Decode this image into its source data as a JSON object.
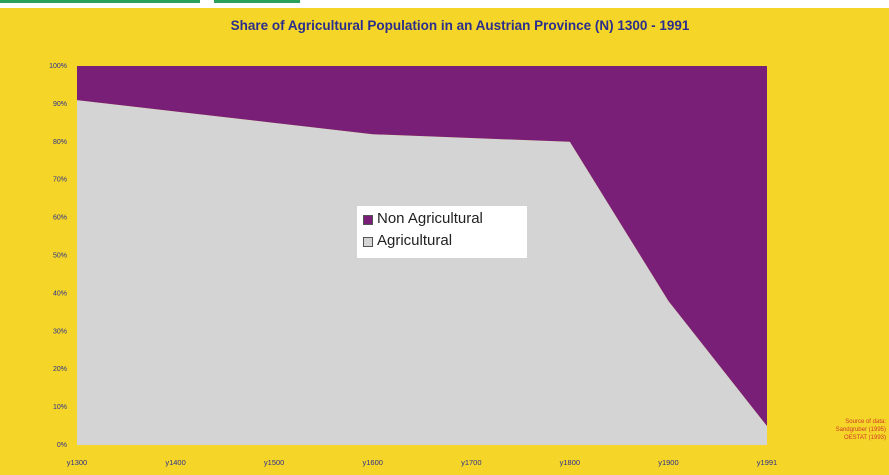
{
  "chart_data": {
    "type": "area",
    "stacked": true,
    "title": "Share of Agricultural Population in an Austrian Province (N) 1300 - 1991",
    "categories": [
      "y1300",
      "y1400",
      "y1500",
      "y1600",
      "y1700",
      "y1800",
      "y1900",
      "y1991"
    ],
    "series": [
      {
        "name": "Agricultural",
        "values": [
          91,
          88,
          85,
          82,
          81,
          80,
          38,
          5
        ],
        "color": "#d4d4d4"
      },
      {
        "name": "Non Agricultural",
        "values": [
          9,
          12,
          15,
          18,
          19,
          20,
          62,
          95
        ],
        "color": "#7a1f78"
      }
    ],
    "ylim": [
      0,
      100
    ],
    "yticks": [
      "0%",
      "10%",
      "20%",
      "30%",
      "40%",
      "50%",
      "60%",
      "70%",
      "80%",
      "90%",
      "100%"
    ],
    "xlabel": "",
    "ylabel": "",
    "grid": false,
    "legend": "center"
  },
  "legend_entries": [
    {
      "label": "Non Agricultural",
      "color": "#7a1f78"
    },
    {
      "label": "Agricultural",
      "color": "#d4d4d4"
    }
  ],
  "source_note": [
    "Source of data:",
    "Sandgruber (1995)",
    "OESTAT (1993)"
  ],
  "colors": {
    "background": "#f5d628",
    "title": "#2b2e8c",
    "axis_text": "#2b2e8c"
  }
}
